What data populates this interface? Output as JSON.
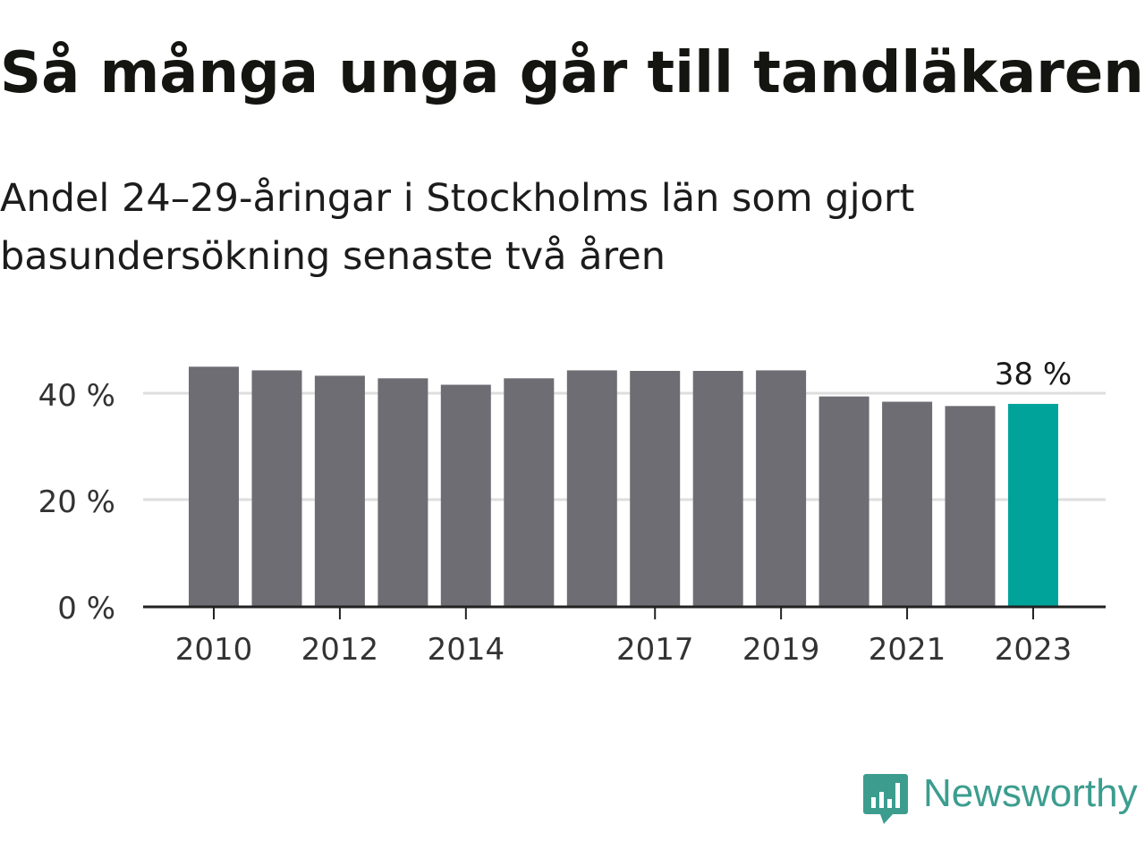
{
  "chart_data": {
    "type": "bar",
    "title": "Så många unga går till tandläkaren",
    "subtitle": "Andel 24–29-åringar i Stockholms län som gjort basundersökning senaste två åren",
    "categories": [
      "2010",
      "2011",
      "2012",
      "2013",
      "2014",
      "2015",
      "2016",
      "2017",
      "2018",
      "2019",
      "2020",
      "2021",
      "2022",
      "2023"
    ],
    "values": [
      45,
      44.3,
      43.3,
      42.8,
      41.6,
      42.8,
      44.3,
      44.2,
      44.2,
      44.3,
      39.4,
      38.4,
      37.6,
      38
    ],
    "highlight_index": 13,
    "x_tick_labels": [
      "2010",
      "2012",
      "2014",
      "2017",
      "2019",
      "2021",
      "2023"
    ],
    "y_ticks": [
      0,
      20,
      40
    ],
    "y_tick_labels": [
      "0 %",
      "20 %",
      "40 %"
    ],
    "ylim": [
      0,
      40
    ],
    "grid": true,
    "annotation": "38 %",
    "colors": {
      "bar": "#6e6d73",
      "highlight": "#00a39a",
      "grid": "#dedede",
      "axis": "#222222",
      "tick_text": "#333333"
    }
  },
  "branding": {
    "logo_text": "Newsworthy",
    "logo_icon": "chart-bubble-icon",
    "logo_color": "#3c9d8f"
  }
}
